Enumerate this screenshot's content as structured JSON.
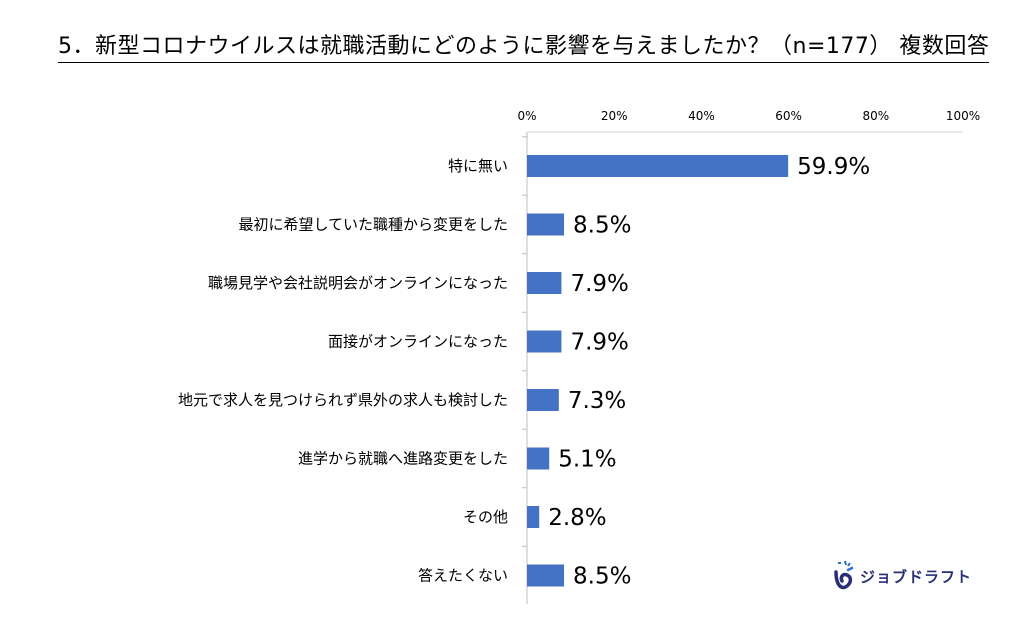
{
  "title": "5．新型コロナウイルスは就職活動にどのように影響を与えましたか？（n=177）  複数回答",
  "chart_data": {
    "type": "bar",
    "orientation": "horizontal",
    "x_ticks": [
      "0%",
      "20%",
      "40%",
      "60%",
      "80%",
      "100%"
    ],
    "xlim": [
      0,
      100
    ],
    "categories": [
      "特に無い",
      "最初に希望していた職種から変更をした",
      "職場見学や会社説明会がオンラインになった",
      "面接がオンラインになった",
      "地元で求人を見つけられず県外の求人も検討した",
      "進学から就職へ進路変更をした",
      "その他",
      "答えたくない"
    ],
    "values": [
      59.9,
      8.5,
      7.9,
      7.9,
      7.3,
      5.1,
      2.8,
      8.5
    ],
    "labels": [
      "59.9%",
      "8.5%",
      "7.9%",
      "7.9%",
      "7.3%",
      "5.1%",
      "2.8%",
      "8.5%"
    ],
    "bar_color": "#4472c4"
  },
  "logo": {
    "text": "ジョブドラフト",
    "color": "#2a2f7a"
  }
}
